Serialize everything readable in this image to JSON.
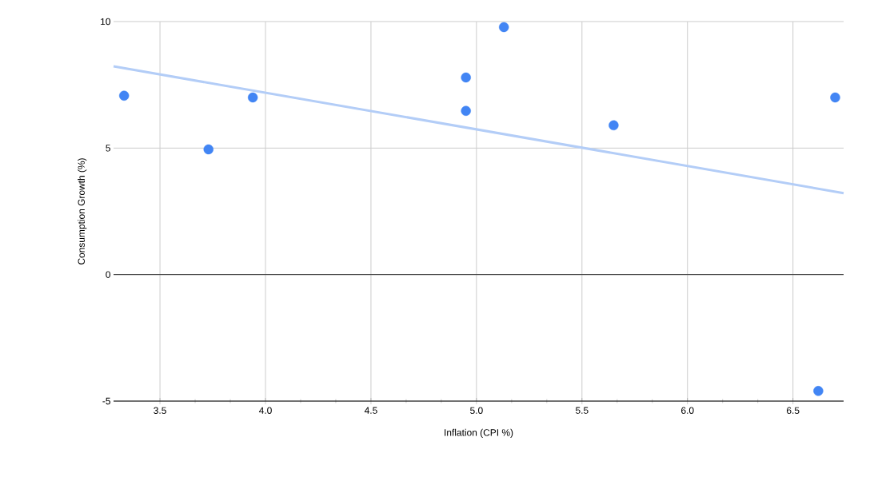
{
  "chart_data": {
    "type": "scatter",
    "xlabel": "Inflation (CPI %)",
    "ylabel": "Consumption Growth (%)",
    "xlim": [
      3.28,
      6.74
    ],
    "ylim": [
      -5,
      10
    ],
    "xticks": [
      {
        "value": 3.5,
        "label": "3.5"
      },
      {
        "value": 4.0,
        "label": "4.0"
      },
      {
        "value": 4.5,
        "label": "4.5"
      },
      {
        "value": 5.0,
        "label": "5.0"
      },
      {
        "value": 5.5,
        "label": "5.5"
      },
      {
        "value": 6.0,
        "label": "6.0"
      },
      {
        "value": 6.5,
        "label": "6.5"
      }
    ],
    "yticks": [
      -5,
      0,
      5,
      10
    ],
    "grid": true,
    "marker": "circle",
    "ref_lines": [
      {
        "axis": "y",
        "value": 0,
        "color": "#333333"
      }
    ],
    "series": [
      {
        "color": "#4285f4",
        "x": [
          3.33,
          3.73,
          3.94,
          4.95,
          4.95,
          5.13,
          5.65,
          6.62,
          6.7
        ],
        "values": [
          7.07,
          4.95,
          7.0,
          7.79,
          6.47,
          9.78,
          5.9,
          -4.6,
          7.0
        ]
      },
      {
        "type": "line",
        "color": "#b3cdf7",
        "marker": "none",
        "x": [
          3.28,
          6.74
        ],
        "values": [
          8.23,
          3.22
        ]
      }
    ]
  }
}
